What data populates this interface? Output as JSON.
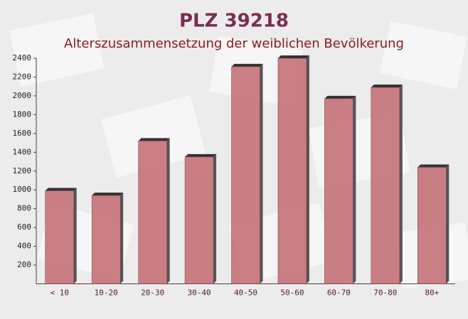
{
  "chart_data": {
    "type": "bar",
    "title": "PLZ 39218",
    "subtitle": "Alterszusammensetzung der weiblichen Bevölkerung",
    "categories": [
      "< 10",
      "10-20",
      "20-30",
      "30-40",
      "40-50",
      "50-60",
      "60-70",
      "70-80",
      "80+"
    ],
    "values": [
      990,
      940,
      1520,
      1350,
      2310,
      2400,
      1970,
      2090,
      1240
    ],
    "color": "#c47278",
    "ylim": [
      0,
      2400
    ],
    "yticks": [
      200,
      400,
      600,
      800,
      1000,
      1200,
      1400,
      1600,
      1800,
      2000,
      2200,
      2400
    ]
  }
}
